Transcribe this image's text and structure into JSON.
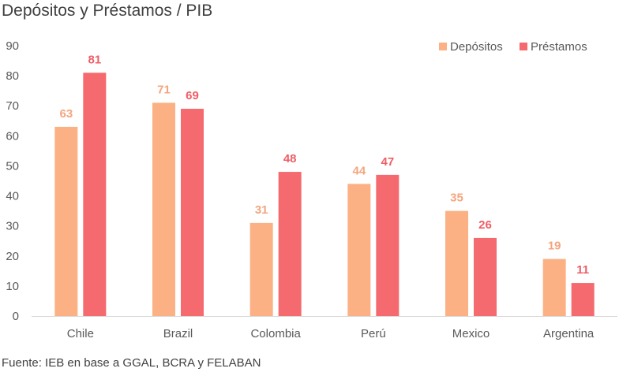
{
  "chart_data": {
    "type": "bar",
    "title": "Depósitos y Préstamos / PIB",
    "xlabel": "",
    "ylabel": "",
    "ylim": [
      0,
      90
    ],
    "yticks": [
      0,
      10,
      20,
      30,
      40,
      50,
      60,
      70,
      80,
      90
    ],
    "grid": false,
    "legend_position": "top-right",
    "categories": [
      "Chile",
      "Brazil",
      "Colombia",
      "Perú",
      "Mexico",
      "Argentina"
    ],
    "series": [
      {
        "name": "Depósitos",
        "color": "#FBB183",
        "label_color": "#F4A57E",
        "values": [
          63,
          71,
          31,
          44,
          35,
          19
        ]
      },
      {
        "name": "Préstamos",
        "color": "#F46A6E",
        "label_color": "#EE5E66",
        "values": [
          81,
          69,
          48,
          47,
          26,
          11
        ]
      }
    ]
  },
  "source": "Fuente: IEB en base a GGAL, BCRA y FELABAN"
}
